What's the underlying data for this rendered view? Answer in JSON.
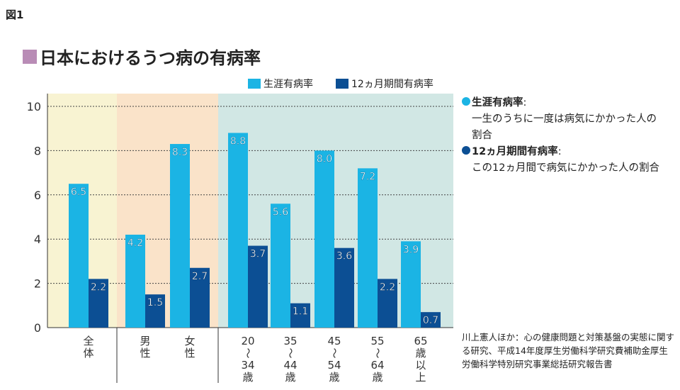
{
  "figure_label": "図1",
  "title": "日本におけるうつ病の有病率",
  "colors": {
    "lifetime": "#1bb4e4",
    "twelve_month": "#0c4f94",
    "title_square": "#b98cb6",
    "panel_total": "#f8f3d2",
    "panel_sex": "#fae3c9",
    "panel_age": "#d1e7e4"
  },
  "chart_data": {
    "type": "bar",
    "title": "日本におけるうつ病の有病率",
    "categories": [
      "全体",
      "男性",
      "女性",
      "20〜34歳",
      "35〜44歳",
      "45〜54歳",
      "55〜64歳",
      "65歳以上"
    ],
    "category_labels": [
      [
        "全",
        "体"
      ],
      [
        "男",
        "性"
      ],
      [
        "女",
        "性"
      ],
      [
        "20",
        "〜",
        "34",
        "歳"
      ],
      [
        "35",
        "〜",
        "44",
        "歳"
      ],
      [
        "45",
        "〜",
        "54",
        "歳"
      ],
      [
        "55",
        "〜",
        "64",
        "歳"
      ],
      [
        "65",
        "歳",
        "以",
        "上"
      ]
    ],
    "series": [
      {
        "name": "生涯有病率",
        "values": [
          6.5,
          4.2,
          8.3,
          8.8,
          5.6,
          8.0,
          7.2,
          3.9
        ]
      },
      {
        "name": "12ヵ月期間有病率",
        "values": [
          2.2,
          1.5,
          2.7,
          3.7,
          1.1,
          3.6,
          2.2,
          0.7
        ]
      }
    ],
    "value_labels": [
      [
        "6.5",
        "4.2",
        "8.3",
        "8.8",
        "5.6",
        "8.0",
        "7.2",
        "3.9"
      ],
      [
        "2.2",
        "1.5",
        "2.7",
        "3.7",
        "1.1",
        "3.6",
        "2.2",
        "0.7"
      ]
    ],
    "ylim": [
      0,
      10
    ],
    "yticks": [
      "0",
      "2",
      "4",
      "6",
      "8",
      "10"
    ],
    "grid": "dashed horizontal",
    "legend": "top"
  },
  "notes": [
    {
      "term": "生涯有病率",
      "desc": "一生のうちに一度は病気にかかった人の割合"
    },
    {
      "term": "12ヵ月期間有病率",
      "desc": "この12ヵ月間で病気にかかった人の割合"
    }
  ],
  "source": "川上憲人ほか：心の健康問題と対策基盤の実態に関する研究、平成14年度厚生労働科学研究費補助金厚生労働科学特別研究事業総括研究報告書"
}
